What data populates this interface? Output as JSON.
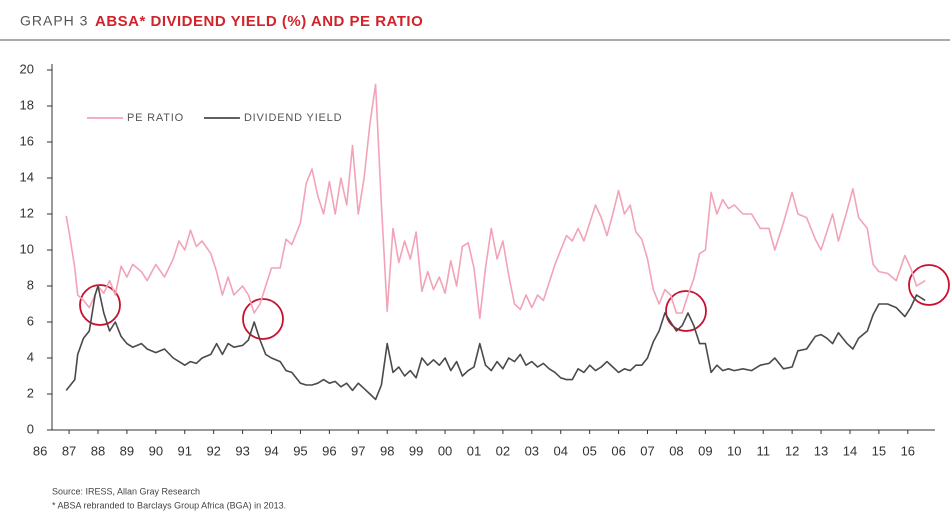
{
  "chart_data": {
    "type": "line",
    "label": "GRAPH 3",
    "title": "ABSA* DIVIDEND YIELD (%) AND PE RATIO",
    "source": "Source: IRESS, Allan Gray Research",
    "footnote": "* ABSA rebranded to Barclays Group Africa (BGA) in 2013.",
    "legend": "upper left",
    "x": [
      1986.9,
      1987.0,
      1987.2,
      1987.3,
      1987.5,
      1987.7,
      1987.9,
      1988.0,
      1988.2,
      1988.4,
      1988.6,
      1988.8,
      1989.0,
      1989.2,
      1989.5,
      1989.7,
      1990.0,
      1990.3,
      1990.6,
      1990.8,
      1991.0,
      1991.2,
      1991.4,
      1991.6,
      1991.9,
      1992.1,
      1992.3,
      1992.5,
      1992.7,
      1993.0,
      1993.2,
      1993.4,
      1993.6,
      1993.8,
      1994.0,
      1994.3,
      1994.5,
      1994.7,
      1995.0,
      1995.2,
      1995.4,
      1995.6,
      1995.8,
      1996.0,
      1996.2,
      1996.4,
      1996.6,
      1996.8,
      1997.0,
      1997.2,
      1997.4,
      1997.6,
      1997.8,
      1998.0,
      1998.2,
      1998.4,
      1998.6,
      1998.8,
      1999.0,
      1999.2,
      1999.4,
      1999.6,
      1999.8,
      2000.0,
      2000.2,
      2000.4,
      2000.6,
      2000.8,
      2001.0,
      2001.2,
      2001.4,
      2001.6,
      2001.8,
      2002.0,
      2002.2,
      2002.4,
      2002.6,
      2002.8,
      2003.0,
      2003.2,
      2003.4,
      2003.6,
      2003.8,
      2004.0,
      2004.2,
      2004.4,
      2004.6,
      2004.8,
      2005.0,
      2005.2,
      2005.4,
      2005.6,
      2005.8,
      2006.0,
      2006.2,
      2006.4,
      2006.6,
      2006.8,
      2007.0,
      2007.2,
      2007.4,
      2007.6,
      2007.8,
      2008.0,
      2008.2,
      2008.4,
      2008.6,
      2008.8,
      2009.0,
      2009.2,
      2009.4,
      2009.6,
      2009.8,
      2010.0,
      2010.3,
      2010.6,
      2010.9,
      2011.2,
      2011.4,
      2011.7,
      2012.0,
      2012.2,
      2012.5,
      2012.8,
      2013.0,
      2013.2,
      2013.4,
      2013.6,
      2013.9,
      2014.1,
      2014.3,
      2014.6,
      2014.8,
      2015.0,
      2015.3,
      2015.6,
      2015.9,
      2016.1,
      2016.3,
      2016.6
    ],
    "series": [
      {
        "name": "PE RATIO",
        "color": "#f2a3b7",
        "values": [
          11.9,
          11,
          9,
          7.5,
          7.2,
          6.8,
          7.5,
          8,
          7.6,
          8.3,
          7.5,
          9.1,
          8.5,
          9.2,
          8.8,
          8.3,
          9.2,
          8.5,
          9.5,
          10.5,
          10,
          11.1,
          10.2,
          10.5,
          9.8,
          8.8,
          7.5,
          8.5,
          7.5,
          8,
          7.5,
          6.5,
          7,
          8,
          9,
          9,
          10.6,
          10.3,
          11.5,
          13.7,
          14.5,
          13,
          12,
          13.8,
          12,
          14,
          12.5,
          15.8,
          12,
          14,
          17,
          19.2,
          12.5,
          6.6,
          11.2,
          9.3,
          10.5,
          9.5,
          11,
          7.7,
          8.8,
          7.8,
          8.5,
          7.6,
          9.4,
          8,
          10.2,
          10.4,
          9,
          6.2,
          9,
          11.2,
          9.5,
          10.5,
          8.6,
          7,
          6.7,
          7.5,
          6.8,
          7.5,
          7.2,
          8.2,
          9.2,
          10,
          10.8,
          10.5,
          11.2,
          10.5,
          11.5,
          12.5,
          11.8,
          10.8,
          12,
          13.3,
          12,
          12.5,
          11,
          10.6,
          9.5,
          7.8,
          7,
          7.8,
          7.5,
          6.5,
          6.5,
          7.5,
          8.4,
          9.8,
          10,
          13.2,
          12,
          12.8,
          12.3,
          12.5,
          12,
          12,
          11.2,
          11.2,
          10,
          11.5,
          13.2,
          12,
          11.8,
          10.6,
          10,
          11,
          12,
          10.5,
          12.2,
          13.4,
          11.8,
          11.2,
          9.2,
          8.8,
          8.7,
          8.3,
          9.7,
          9,
          8,
          8.3
        ]
      },
      {
        "name": "DIVIDEND YIELD",
        "color": "#4a4a4c",
        "values": [
          2.2,
          2.4,
          2.8,
          4.2,
          5.1,
          5.5,
          7.5,
          8,
          6.5,
          5.5,
          6,
          5.2,
          4.8,
          4.6,
          4.8,
          4.5,
          4.3,
          4.5,
          4,
          3.8,
          3.6,
          3.8,
          3.7,
          4,
          4.2,
          4.8,
          4.2,
          4.8,
          4.6,
          4.7,
          5,
          6,
          5,
          4.2,
          4,
          3.8,
          3.3,
          3.2,
          2.6,
          2.5,
          2.5,
          2.6,
          2.8,
          2.6,
          2.7,
          2.4,
          2.6,
          2.2,
          2.6,
          2.3,
          2.0,
          1.7,
          2.5,
          4.8,
          3.2,
          3.5,
          3,
          3.3,
          2.9,
          4,
          3.6,
          3.9,
          3.6,
          4,
          3.3,
          3.8,
          3,
          3.3,
          3.5,
          4.8,
          3.6,
          3.3,
          3.8,
          3.4,
          4,
          3.8,
          4.2,
          3.6,
          3.8,
          3.5,
          3.7,
          3.4,
          3.2,
          2.9,
          2.8,
          2.8,
          3.4,
          3.2,
          3.6,
          3.3,
          3.5,
          3.8,
          3.5,
          3.2,
          3.4,
          3.3,
          3.6,
          3.6,
          4,
          4.9,
          5.5,
          6.5,
          6,
          5.5,
          5.8,
          6.5,
          5.8,
          4.8,
          4.8,
          3.2,
          3.6,
          3.3,
          3.4,
          3.3,
          3.4,
          3.3,
          3.6,
          3.7,
          4,
          3.4,
          3.5,
          4.4,
          4.5,
          5.2,
          5.3,
          5.1,
          4.8,
          5.4,
          4.8,
          4.5,
          5.1,
          5.5,
          6.4,
          7,
          7,
          6.8,
          6.3,
          6.8,
          7.5,
          7.2
        ]
      }
    ],
    "xlim": [
      1986.41,
      2016.94
    ],
    "xticks": [
      {
        "value": 1986,
        "label": "86"
      },
      {
        "value": 1987,
        "label": "87"
      },
      {
        "value": 1988,
        "label": "88"
      },
      {
        "value": 1989,
        "label": "89"
      },
      {
        "value": 1990,
        "label": "90"
      },
      {
        "value": 1991,
        "label": "91"
      },
      {
        "value": 1992,
        "label": "92"
      },
      {
        "value": 1993,
        "label": "93"
      },
      {
        "value": 1994,
        "label": "94"
      },
      {
        "value": 1995,
        "label": "95"
      },
      {
        "value": 1996,
        "label": "96"
      },
      {
        "value": 1997,
        "label": "97"
      },
      {
        "value": 1998,
        "label": "98"
      },
      {
        "value": 1999,
        "label": "99"
      },
      {
        "value": 2000,
        "label": "00"
      },
      {
        "value": 2001,
        "label": "01"
      },
      {
        "value": 2002,
        "label": "02"
      },
      {
        "value": 2003,
        "label": "03"
      },
      {
        "value": 2004,
        "label": "04"
      },
      {
        "value": 2005,
        "label": "05"
      },
      {
        "value": 2006,
        "label": "06"
      },
      {
        "value": 2007,
        "label": "07"
      },
      {
        "value": 2008,
        "label": "08"
      },
      {
        "value": 2009,
        "label": "09"
      },
      {
        "value": 2010,
        "label": "10"
      },
      {
        "value": 2011,
        "label": "11"
      },
      {
        "value": 2012,
        "label": "12"
      },
      {
        "value": 2013,
        "label": "13"
      },
      {
        "value": 2014,
        "label": "14"
      },
      {
        "value": 2015,
        "label": "15"
      },
      {
        "value": 2016,
        "label": "16"
      }
    ],
    "ylim": [
      0,
      20
    ],
    "yticks": [
      0,
      2,
      4,
      6,
      8,
      10,
      12,
      14,
      16,
      18,
      20
    ],
    "grid": false
  }
}
